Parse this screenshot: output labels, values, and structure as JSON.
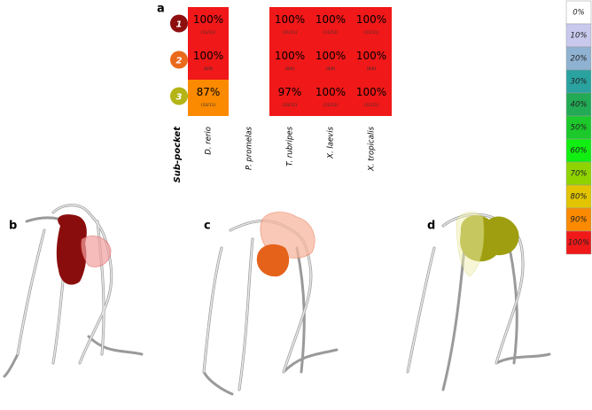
{
  "chart_data": {
    "type": "heatmap",
    "panel_labels": [
      "a",
      "b",
      "c",
      "d"
    ],
    "row_axis_label": "Sub-pocket",
    "rows": [
      "1",
      "2",
      "3"
    ],
    "row_colors": [
      "#8e0f0f",
      "#ea6a1c",
      "#b4b416"
    ],
    "columns": [
      "D. rerio",
      "P. promelas",
      "T. rubripes",
      "X. laevis",
      "X. tropicalis"
    ],
    "values": [
      [
        100,
        null,
        100,
        100,
        100
      ],
      [
        100,
        null,
        100,
        100,
        100
      ],
      [
        87,
        null,
        97,
        100,
        100
      ]
    ],
    "value_labels": [
      [
        "100%",
        null,
        "100%",
        "100%",
        "100%"
      ],
      [
        "100%",
        null,
        "100%",
        "100%",
        "100%"
      ],
      [
        "87%",
        null,
        "97%",
        "100%",
        "100%"
      ]
    ],
    "counts": [
      [
        "(11/11)",
        null,
        "(11/11)",
        "(11/11)",
        "(11/11)"
      ],
      [
        "(8/8)",
        null,
        "(8/8)",
        "(8/8)",
        "(8/8)"
      ],
      [
        "(10/11)",
        null,
        "(10/11)",
        "(11/11)",
        "(11/11)"
      ]
    ],
    "colorbar": {
      "ticks": [
        {
          "value": 0,
          "label": "0%"
        },
        {
          "value": 10,
          "label": "10%"
        },
        {
          "value": 20,
          "label": "20%"
        },
        {
          "value": 30,
          "label": "30%"
        },
        {
          "value": 40,
          "label": "40%"
        },
        {
          "value": 50,
          "label": "50%"
        },
        {
          "value": 60,
          "label": "60%"
        },
        {
          "value": 70,
          "label": "70%"
        },
        {
          "value": 80,
          "label": "80%"
        },
        {
          "value": 90,
          "label": "90%"
        },
        {
          "value": 100,
          "label": "100%"
        }
      ],
      "colors": [
        "#ffffff",
        "#c9c9ee",
        "#8fb2d2",
        "#2aa3a0",
        "#22aa55",
        "#1cc82a",
        "#11ee11",
        "#8fd400",
        "#e2c500",
        "#fb8a00",
        "#f01818"
      ]
    }
  }
}
